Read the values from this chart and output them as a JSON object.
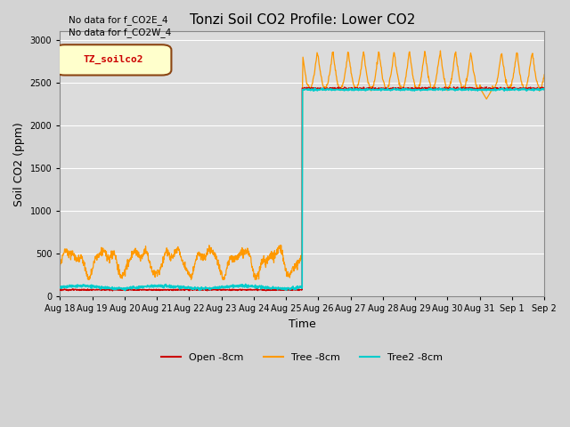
{
  "title": "Tonzi Soil CO2 Profile: Lower CO2",
  "xlabel": "Time",
  "ylabel": "Soil CO2 (ppm)",
  "ylim": [
    0,
    3100
  ],
  "yticks": [
    0,
    500,
    1000,
    1500,
    2000,
    2500,
    3000
  ],
  "background_color": "#dcdcdc",
  "fig_facecolor": "#d8d8d8",
  "annotations": [
    "No data for f_CO2E_4",
    "No data for f_CO2W_4"
  ],
  "legend_box_label": "TZ_soilco2",
  "legend_box_color": "#ffffcc",
  "legend_box_border": "#8b4513",
  "colors": {
    "open": "#cc0000",
    "tree": "#ff9900",
    "tree2": "#00cccc"
  },
  "legend_labels": [
    "Open -8cm",
    "Tree -8cm",
    "Tree2 -8cm"
  ],
  "transition_day": 7.5,
  "n_days_before": 7.5,
  "n_days_after": 7.5
}
